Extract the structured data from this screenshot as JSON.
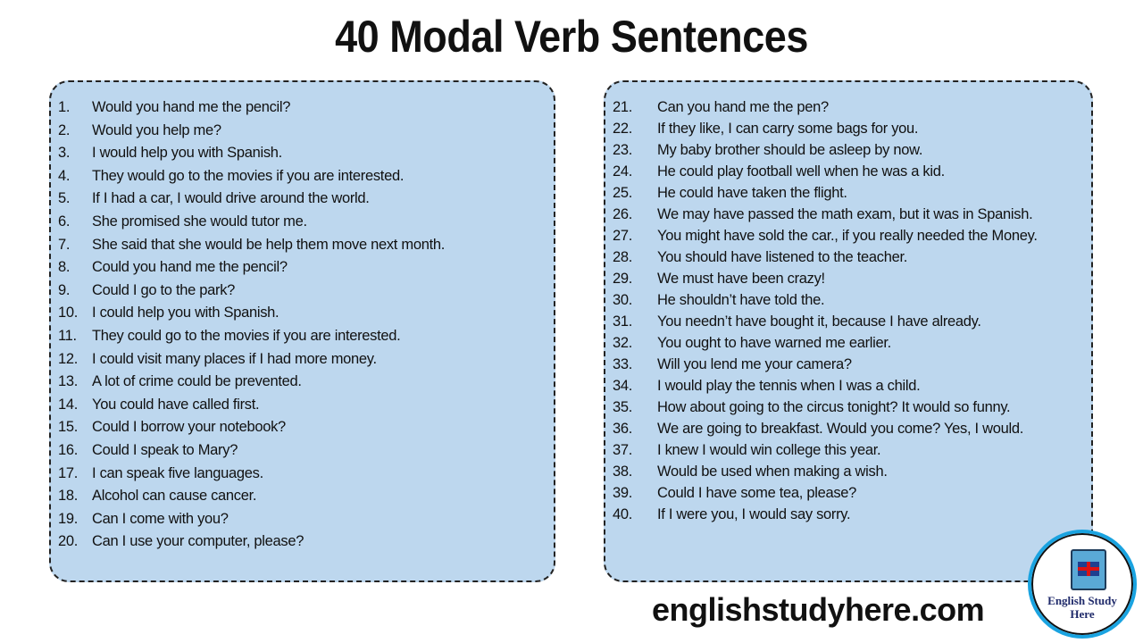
{
  "title": "40 Modal Verb Sentences",
  "left_list": [
    {
      "num": "1.",
      "text": "Would you hand me the pencil?"
    },
    {
      "num": "2.",
      "text": "Would you help me?"
    },
    {
      "num": "3.",
      "text": "I would help you with Spanish."
    },
    {
      "num": "4.",
      "text": "They would go to the movies if you are interested."
    },
    {
      "num": "5.",
      "text": "If I had a car, I would drive around the world."
    },
    {
      "num": "6.",
      "text": "She promised she would tutor me."
    },
    {
      "num": "7.",
      "text": "She said that she would be help them move next month."
    },
    {
      "num": "8.",
      "text": "Could you hand me the pencil?"
    },
    {
      "num": "9.",
      "text": "Could I go to the park?"
    },
    {
      "num": "10.",
      "text": "I could help you with Spanish."
    },
    {
      "num": "11.",
      "text": "They could go to the movies if you are interested."
    },
    {
      "num": "12.",
      "text": "I could visit many places if I had more money."
    },
    {
      "num": "13.",
      "text": "A lot of crime could be prevented."
    },
    {
      "num": "14.",
      "text": "You could have called first."
    },
    {
      "num": "15.",
      "text": "Could I borrow your notebook?"
    },
    {
      "num": "16.",
      "text": "Could I  speak to Mary?"
    },
    {
      "num": "17.",
      "text": "I can speak five languages."
    },
    {
      "num": "18.",
      "text": "Alcohol can cause cancer."
    },
    {
      "num": "19.",
      "text": "Can I come with you?"
    },
    {
      "num": "20.",
      "text": "Can I use your computer, please?"
    }
  ],
  "right_list": [
    {
      "num": "21.",
      "text": "Can you hand me the pen?"
    },
    {
      "num": "22.",
      "text": "If they like, I can carry some bags for you."
    },
    {
      "num": "23.",
      "text": "My baby brother should be asleep by now."
    },
    {
      "num": "24.",
      "text": "He could play football well when he was a kid."
    },
    {
      "num": "25.",
      "text": "He could have taken the flight."
    },
    {
      "num": "26.",
      "text": "We may have passed the math exam, but it was in Spanish."
    },
    {
      "num": "27.",
      "text": "You might have sold the car., if you really needed the Money."
    },
    {
      "num": "28.",
      "text": "You should have listened to the teacher."
    },
    {
      "num": "29.",
      "text": "We must have been crazy!"
    },
    {
      "num": "30.",
      "text": "He shouldn’t have told the."
    },
    {
      "num": "31.",
      "text": "You needn’t have bought it, because I have already."
    },
    {
      "num": "32.",
      "text": "You ought to have warned me earlier."
    },
    {
      "num": "33.",
      "text": "Will you lend me your camera?"
    },
    {
      "num": "34.",
      "text": "I would play the tennis when I was a child."
    },
    {
      "num": "35.",
      "text": "How about going to the circus tonight? It would so funny."
    },
    {
      "num": "36.",
      "text": "We are going to breakfast. Would you come? Yes, I would."
    },
    {
      "num": "37.",
      "text": "I knew I would win college this year."
    },
    {
      "num": "38.",
      "text": "Would be used when making a wish."
    },
    {
      "num": "39.",
      "text": "Could I have some tea, please?"
    },
    {
      "num": "40.",
      "text": "If I were you, I would say sorry."
    }
  ],
  "website": "englishstudyhere.com",
  "logo": {
    "text": "English Study Here",
    "line1": "English Study",
    "line2": "Here",
    "ring_color": "#1aa3e0"
  },
  "colors": {
    "box_bg": "#bdd7ee"
  }
}
